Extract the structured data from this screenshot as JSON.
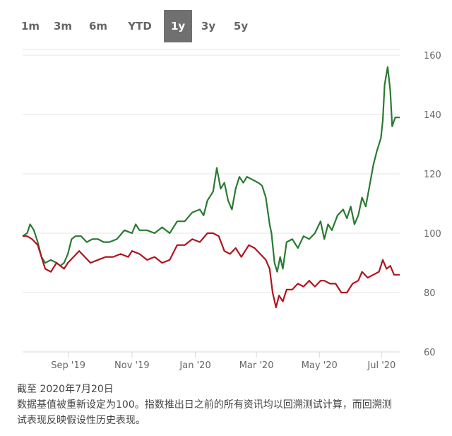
{
  "range_buttons": [
    {
      "label": "1m",
      "active": false
    },
    {
      "label": "3m",
      "active": false
    },
    {
      "label": "6m",
      "active": false
    },
    {
      "label": "YTD",
      "active": false
    },
    {
      "label": "1y",
      "active": true
    },
    {
      "label": "3y",
      "active": false
    },
    {
      "label": "5y",
      "active": false
    }
  ],
  "footnote": {
    "line1": "截至 2020年7月20日",
    "line2": "数据基值被重新设定为100。指数推出日之前的所有资讯均以回溯测试计算，而回溯测",
    "line3": "试表现反映假设性历史表现。"
  },
  "chart_data": {
    "type": "line",
    "ylim": [
      60,
      160
    ],
    "yticks": [
      60,
      80,
      100,
      120,
      140,
      160
    ],
    "xticks": [
      {
        "label": "Sep '19",
        "t": 0.121
      },
      {
        "label": "Nov '19",
        "t": 0.29
      },
      {
        "label": "Jan '20",
        "t": 0.458
      },
      {
        "label": "Mar '20",
        "t": 0.62
      },
      {
        "label": "May '20",
        "t": 0.787
      },
      {
        "label": "Jul '20",
        "t": 0.952
      }
    ],
    "colors": {
      "green": "#2a7a32",
      "red": "#b0141e",
      "grid": "#e6e6e6",
      "axis": "#d8d8d8"
    },
    "series": [
      {
        "color": "green",
        "points": [
          [
            0,
            99
          ],
          [
            0.012,
            100
          ],
          [
            0.02,
            103
          ],
          [
            0.03,
            101
          ],
          [
            0.04,
            97
          ],
          [
            0.05,
            92
          ],
          [
            0.06,
            90
          ],
          [
            0.075,
            91
          ],
          [
            0.09,
            90
          ],
          [
            0.1,
            89
          ],
          [
            0.11,
            90
          ],
          [
            0.12,
            93
          ],
          [
            0.13,
            98
          ],
          [
            0.14,
            99
          ],
          [
            0.155,
            99
          ],
          [
            0.17,
            97
          ],
          [
            0.185,
            98
          ],
          [
            0.2,
            98
          ],
          [
            0.215,
            97
          ],
          [
            0.23,
            97
          ],
          [
            0.25,
            98
          ],
          [
            0.27,
            101
          ],
          [
            0.29,
            100
          ],
          [
            0.3,
            103
          ],
          [
            0.31,
            101
          ],
          [
            0.33,
            101
          ],
          [
            0.35,
            100
          ],
          [
            0.37,
            102
          ],
          [
            0.39,
            100
          ],
          [
            0.41,
            104
          ],
          [
            0.43,
            104
          ],
          [
            0.45,
            107
          ],
          [
            0.47,
            108
          ],
          [
            0.48,
            106
          ],
          [
            0.49,
            111
          ],
          [
            0.505,
            114
          ],
          [
            0.515,
            122
          ],
          [
            0.525,
            115
          ],
          [
            0.535,
            117
          ],
          [
            0.545,
            111
          ],
          [
            0.555,
            108
          ],
          [
            0.565,
            115
          ],
          [
            0.575,
            119
          ],
          [
            0.585,
            117
          ],
          [
            0.595,
            119
          ],
          [
            0.61,
            118
          ],
          [
            0.625,
            117
          ],
          [
            0.635,
            116
          ],
          [
            0.645,
            112
          ],
          [
            0.655,
            103
          ],
          [
            0.66,
            100
          ],
          [
            0.668,
            90
          ],
          [
            0.675,
            87
          ],
          [
            0.683,
            92
          ],
          [
            0.69,
            88
          ],
          [
            0.7,
            97
          ],
          [
            0.715,
            98
          ],
          [
            0.73,
            95
          ],
          [
            0.745,
            99
          ],
          [
            0.76,
            98
          ],
          [
            0.775,
            100
          ],
          [
            0.79,
            104
          ],
          [
            0.8,
            98
          ],
          [
            0.81,
            103
          ],
          [
            0.82,
            101
          ],
          [
            0.835,
            106
          ],
          [
            0.85,
            108
          ],
          [
            0.86,
            105
          ],
          [
            0.87,
            109
          ],
          [
            0.88,
            103
          ],
          [
            0.89,
            106
          ],
          [
            0.9,
            112
          ],
          [
            0.91,
            109
          ],
          [
            0.92,
            116
          ],
          [
            0.93,
            123
          ],
          [
            0.94,
            128
          ],
          [
            0.95,
            132
          ],
          [
            0.955,
            138
          ],
          [
            0.96,
            150
          ],
          [
            0.968,
            156
          ],
          [
            0.975,
            148
          ],
          [
            0.98,
            136
          ],
          [
            0.988,
            139
          ],
          [
            1.0,
            139
          ]
        ]
      },
      {
        "color": "red",
        "points": [
          [
            0,
            99
          ],
          [
            0.012,
            99
          ],
          [
            0.025,
            98
          ],
          [
            0.04,
            96
          ],
          [
            0.05,
            92
          ],
          [
            0.06,
            88
          ],
          [
            0.075,
            87
          ],
          [
            0.09,
            90
          ],
          [
            0.1,
            89
          ],
          [
            0.11,
            88
          ],
          [
            0.12,
            90
          ],
          [
            0.135,
            92
          ],
          [
            0.15,
            94
          ],
          [
            0.165,
            92
          ],
          [
            0.18,
            90
          ],
          [
            0.2,
            91
          ],
          [
            0.22,
            92
          ],
          [
            0.24,
            92
          ],
          [
            0.26,
            93
          ],
          [
            0.28,
            92
          ],
          [
            0.29,
            94
          ],
          [
            0.31,
            93
          ],
          [
            0.33,
            91
          ],
          [
            0.35,
            92
          ],
          [
            0.37,
            90
          ],
          [
            0.39,
            91
          ],
          [
            0.41,
            96
          ],
          [
            0.43,
            96
          ],
          [
            0.45,
            98
          ],
          [
            0.47,
            97
          ],
          [
            0.49,
            100
          ],
          [
            0.505,
            100
          ],
          [
            0.52,
            99
          ],
          [
            0.535,
            94
          ],
          [
            0.55,
            93
          ],
          [
            0.565,
            95
          ],
          [
            0.58,
            92
          ],
          [
            0.6,
            96
          ],
          [
            0.615,
            95
          ],
          [
            0.63,
            93
          ],
          [
            0.645,
            91
          ],
          [
            0.655,
            88
          ],
          [
            0.663,
            80
          ],
          [
            0.672,
            75
          ],
          [
            0.68,
            79
          ],
          [
            0.69,
            77
          ],
          [
            0.7,
            81
          ],
          [
            0.715,
            81
          ],
          [
            0.73,
            83
          ],
          [
            0.745,
            82
          ],
          [
            0.76,
            84
          ],
          [
            0.775,
            82
          ],
          [
            0.79,
            84
          ],
          [
            0.8,
            84
          ],
          [
            0.815,
            83
          ],
          [
            0.83,
            83
          ],
          [
            0.845,
            80
          ],
          [
            0.86,
            80
          ],
          [
            0.875,
            83
          ],
          [
            0.89,
            84
          ],
          [
            0.9,
            87
          ],
          [
            0.915,
            85
          ],
          [
            0.93,
            86
          ],
          [
            0.945,
            87
          ],
          [
            0.955,
            91
          ],
          [
            0.965,
            88
          ],
          [
            0.975,
            89
          ],
          [
            0.985,
            86
          ],
          [
            1.0,
            86
          ]
        ]
      }
    ]
  }
}
